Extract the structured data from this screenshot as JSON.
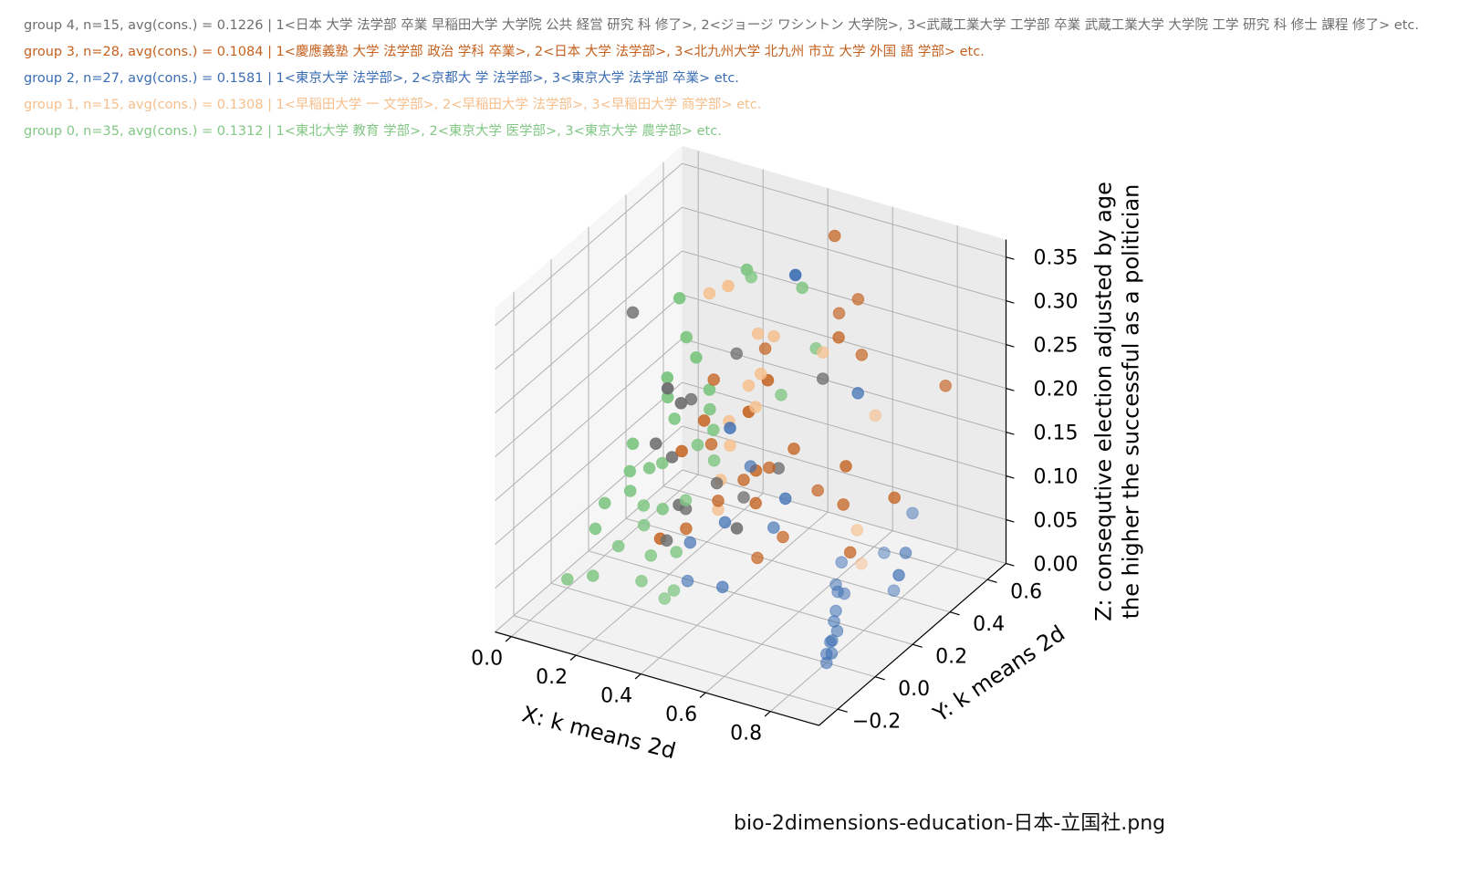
{
  "legend": [
    {
      "text": "group 4,  n=15, avg(cons.) = 0.1226 | 1<日本 大学 法学部 卒業 早稲田大学 大学院 公共 経営 研究 科 修了>,  2<ジョージ ワシントン 大学院>, 3<武蔵工業大学 工学部 卒業 武蔵工業大学 大学院 工学 研究 科 修士 課程 修了> etc.",
      "color": "#6e6e6e"
    },
    {
      "text": "group 3,  n=28, avg(cons.) = 0.1084 | 1<慶應義塾 大学 法学部 政治 学科 卒業>,  2<日本 大学 法学部>, 3<北九州大学 北九州 市立 大学 外国 語 学部> etc.",
      "color": "#c4611e"
    },
    {
      "text": "group 2,  n=27, avg(cons.) = 0.1581 | 1<東京大学 法学部>,  2<京都大 学 法学部>, 3<東京大学 法学部 卒業> etc.",
      "color": "#3b6db3"
    },
    {
      "text": "group 1,  n=15, avg(cons.) = 0.1308 | 1<早稲田大学 一 文学部>,  2<早稲田大学 法学部>, 3<早稲田大学 商学部> etc.",
      "color": "#f6bf8c"
    },
    {
      "text": "group 0,  n=35, avg(cons.) = 0.1312 | 1<東北大学 教育 学部>,  2<東京大学 医学部>, 3<東京大学 農学部> etc.",
      "color": "#82c785"
    }
  ],
  "footer": "bio-2dimensions-education-日本-立国社.png",
  "chart_data": {
    "type": "scatter3d",
    "xlabel": "X: k means 2d",
    "ylabel": "Y: k means 2d",
    "zlabel_lines": [
      "Z: consequtive election adjusted by age",
      "the higher the successful as a politician"
    ],
    "xticks": [
      "0.0",
      "0.2",
      "0.4",
      "0.6",
      "0.8"
    ],
    "yticks": [
      "−0.2",
      "0.0",
      "0.2",
      "0.4",
      "0.6"
    ],
    "zticks": [
      "0.00",
      "0.05",
      "0.10",
      "0.15",
      "0.20",
      "0.25",
      "0.30",
      "0.35"
    ],
    "xlim": [
      -0.05,
      0.95
    ],
    "ylim": [
      -0.3,
      0.7
    ],
    "zlim": [
      0.0,
      0.37
    ],
    "grid": true,
    "series": [
      {
        "group": 4,
        "color": "#6e6e6e",
        "points": [
          [
            0.05,
            0.45,
            0.15
          ],
          [
            0.0,
            0.35,
            0.25
          ],
          [
            0.12,
            0.4,
            0.15
          ],
          [
            0.2,
            0.25,
            0.07
          ],
          [
            0.15,
            0.3,
            0.11
          ],
          [
            0.25,
            0.2,
            0.08
          ],
          [
            0.3,
            0.28,
            0.1
          ],
          [
            0.18,
            0.35,
            0.17
          ],
          [
            0.1,
            0.3,
            0.12
          ],
          [
            0.35,
            0.3,
            0.05
          ],
          [
            0.45,
            0.35,
            0.12
          ],
          [
            0.28,
            0.42,
            0.22
          ],
          [
            0.5,
            0.5,
            0.2
          ],
          [
            0.22,
            0.15,
            0.05
          ],
          [
            0.4,
            0.25,
            0.1
          ]
        ]
      },
      {
        "group": 3,
        "color": "#c4611e",
        "points": [
          [
            0.45,
            0.65,
            0.33
          ],
          [
            0.55,
            0.5,
            0.28
          ],
          [
            0.58,
            0.55,
            0.29
          ],
          [
            0.52,
            0.55,
            0.24
          ],
          [
            0.62,
            0.5,
            0.24
          ],
          [
            0.38,
            0.4,
            0.24
          ],
          [
            0.25,
            0.35,
            0.2
          ],
          [
            0.6,
            0.3,
            0.12
          ],
          [
            0.75,
            0.45,
            0.1
          ],
          [
            0.85,
            0.55,
            0.22
          ],
          [
            0.3,
            0.25,
            0.15
          ],
          [
            0.22,
            0.35,
            0.15
          ],
          [
            0.35,
            0.2,
            0.1
          ],
          [
            0.4,
            0.25,
            0.12
          ],
          [
            0.45,
            0.3,
            0.13
          ],
          [
            0.28,
            0.15,
            0.07
          ],
          [
            0.18,
            0.3,
            0.12
          ],
          [
            0.65,
            0.35,
            0.1
          ],
          [
            0.55,
            0.2,
            0.08
          ],
          [
            0.6,
            0.45,
            0.12
          ],
          [
            0.3,
            0.45,
            0.15
          ],
          [
            0.48,
            0.38,
            0.14
          ],
          [
            0.7,
            0.3,
            0.06
          ],
          [
            0.2,
            0.15,
            0.05
          ],
          [
            0.42,
            0.28,
            0.09
          ],
          [
            0.5,
            0.15,
            0.06
          ],
          [
            0.33,
            0.5,
            0.18
          ],
          [
            0.38,
            0.35,
            0.11
          ]
        ]
      },
      {
        "group": 2,
        "color": "#3b6db3",
        "points": [
          [
            0.3,
            0.7,
            0.26
          ],
          [
            0.62,
            0.48,
            0.2
          ],
          [
            0.85,
            0.3,
            0.05
          ],
          [
            0.9,
            0.25,
            0.09
          ],
          [
            0.4,
            0.15,
            0.09
          ],
          [
            0.3,
            0.35,
            0.15
          ],
          [
            0.45,
            0.2,
            0.15
          ],
          [
            0.5,
            0.3,
            0.1
          ],
          [
            0.55,
            0.15,
            0.1
          ],
          [
            0.35,
            0.05,
            0.08
          ],
          [
            0.4,
            -0.05,
            0.06
          ],
          [
            0.45,
            0.05,
            0.04
          ],
          [
            0.8,
            0.0,
            0.01
          ],
          [
            0.8,
            0.0,
            0.0
          ],
          [
            0.8,
            0.02,
            0.02
          ],
          [
            0.8,
            0.05,
            0.05
          ],
          [
            0.8,
            0.05,
            0.08
          ],
          [
            0.81,
            0.04,
            0.03
          ],
          [
            0.81,
            0.01,
            0.01
          ],
          [
            0.8,
            0.06,
            0.07
          ],
          [
            0.8,
            0.03,
            0.02
          ],
          [
            0.8,
            0.08,
            0.1
          ],
          [
            0.95,
            0.1,
            0.08
          ],
          [
            0.95,
            0.2,
            0.15
          ],
          [
            0.92,
            0.1,
            0.12
          ],
          [
            0.82,
            0.06,
            0.07
          ],
          [
            0.8,
            0.04,
            0.04
          ]
        ]
      },
      {
        "group": 1,
        "color": "#f6bf8c",
        "points": [
          [
            0.15,
            0.6,
            0.25
          ],
          [
            0.3,
            0.5,
            0.23
          ],
          [
            0.32,
            0.55,
            0.22
          ],
          [
            0.3,
            0.45,
            0.18
          ],
          [
            0.32,
            0.48,
            0.19
          ],
          [
            0.35,
            0.4,
            0.17
          ],
          [
            0.3,
            0.3,
            0.1
          ],
          [
            0.72,
            0.4,
            0.2
          ],
          [
            0.75,
            0.25,
            0.1
          ],
          [
            0.85,
            0.1,
            0.1
          ],
          [
            0.15,
            0.5,
            0.26
          ],
          [
            0.35,
            0.2,
            0.09
          ],
          [
            0.5,
            0.5,
            0.23
          ],
          [
            0.3,
            0.35,
            0.13
          ],
          [
            0.28,
            0.38,
            0.15
          ]
        ]
      },
      {
        "group": 0,
        "color": "#82c785",
        "points": [
          [
            0.0,
            0.6,
            0.22
          ],
          [
            0.05,
            0.55,
            0.19
          ],
          [
            0.15,
            0.7,
            0.25
          ],
          [
            0.25,
            0.55,
            0.28
          ],
          [
            0.35,
            0.65,
            0.26
          ],
          [
            0.02,
            0.5,
            0.15
          ],
          [
            0.05,
            0.45,
            0.14
          ],
          [
            0.1,
            0.4,
            0.13
          ],
          [
            0.15,
            0.5,
            0.15
          ],
          [
            0.18,
            0.45,
            0.14
          ],
          [
            0.2,
            0.35,
            0.12
          ],
          [
            0.22,
            0.4,
            0.13
          ],
          [
            0.0,
            0.35,
            0.1
          ],
          [
            0.02,
            0.3,
            0.08
          ],
          [
            0.08,
            0.3,
            0.09
          ],
          [
            0.05,
            0.25,
            0.07
          ],
          [
            0.12,
            0.2,
            0.07
          ],
          [
            0.15,
            0.25,
            0.06
          ],
          [
            0.0,
            0.2,
            0.06
          ],
          [
            0.0,
            0.15,
            0.04
          ],
          [
            0.1,
            0.1,
            0.04
          ],
          [
            0.2,
            0.1,
            0.04
          ],
          [
            0.25,
            0.15,
            0.04
          ],
          [
            0.2,
            0.05,
            0.02
          ],
          [
            0.05,
            0.05,
            0.01
          ],
          [
            0.0,
            0.0,
            0.01
          ],
          [
            0.3,
            0.05,
            0.02
          ],
          [
            0.25,
            0.2,
            0.09
          ],
          [
            0.28,
            0.3,
            0.12
          ],
          [
            0.15,
            0.15,
            0.06
          ],
          [
            0.4,
            0.45,
            0.18
          ],
          [
            0.45,
            0.55,
            0.22
          ],
          [
            0.08,
            0.55,
            0.17
          ],
          [
            0.3,
            0.0,
            0.02
          ],
          [
            0.12,
            0.3,
            0.1
          ]
        ]
      }
    ]
  }
}
